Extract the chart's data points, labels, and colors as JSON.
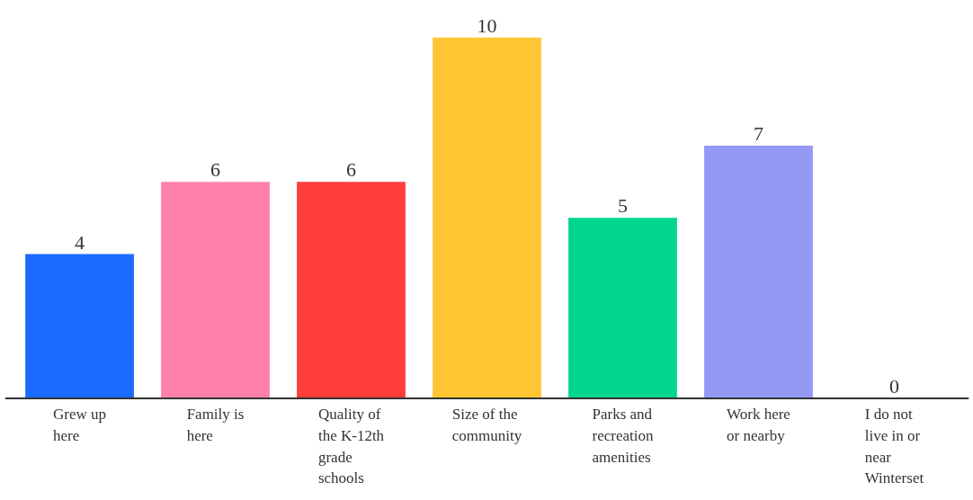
{
  "chart_data": {
    "type": "bar",
    "data_labels": true,
    "categories": [
      "Grew up here",
      "Family is here",
      "Quality of the K-12th grade schools",
      "Size of the community",
      "Parks and recreation amenities",
      "Work here or nearby",
      "I do not live in or near Winterset"
    ],
    "values": [
      4,
      6,
      6,
      10,
      5,
      7,
      0
    ],
    "colors": [
      "#1a6aff",
      "#ff80ac",
      "#ff3d3d",
      "#ffc533",
      "#00d68f",
      "#9499f5",
      "#9499f5"
    ]
  }
}
